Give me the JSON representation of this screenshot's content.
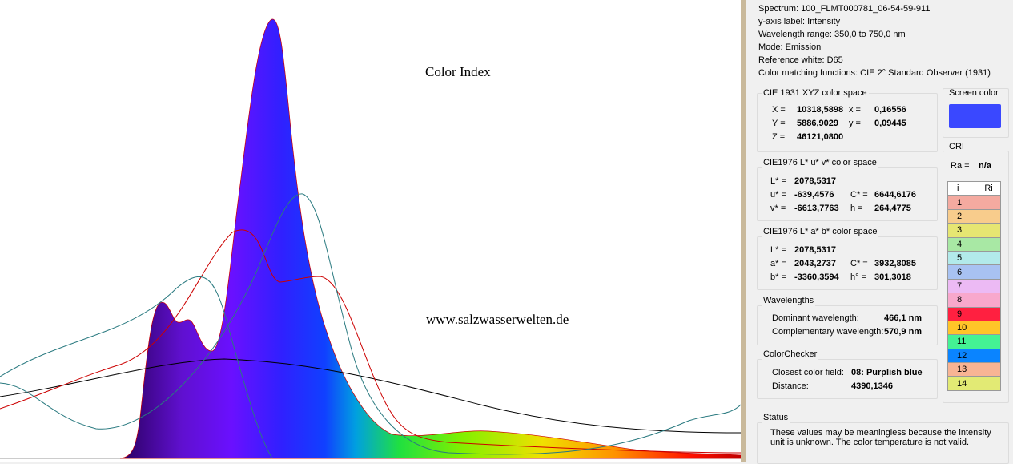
{
  "header": {
    "lines": [
      "Spectrum: 100_FLMT000781_06-54-59-911",
      "y-axis label: Intensity",
      "Wavelength range: 350,0 to 750,0 nm",
      "Mode: Emission",
      "Reference white: D65",
      "Color matching functions: CIE 2° Standard Observer (1931)"
    ]
  },
  "chart": {
    "title": "Color Index",
    "watermark": "www.salzwasserwelten.de"
  },
  "xyz": {
    "title": "CIE 1931 XYZ color space",
    "rows": [
      [
        "X =",
        "10318,5898",
        "x =",
        "0,16556"
      ],
      [
        "Y =",
        "5886,9029",
        "y =",
        "0,09445"
      ],
      [
        "Z =",
        "46121,0800"
      ]
    ]
  },
  "luv": {
    "title": "CIE1976 L* u* v* color space",
    "rows": [
      [
        "L* =",
        "2078,5317"
      ],
      [
        "u* =",
        "-639,4576",
        "C* =",
        "6644,6176"
      ],
      [
        "v* =",
        "-6613,7763",
        "h =",
        "264,4775"
      ]
    ]
  },
  "lab": {
    "title": "CIE1976 L* a* b* color space",
    "rows": [
      [
        "L* =",
        "2078,5317"
      ],
      [
        "a* =",
        "2043,2737",
        "C* =",
        "3932,8085"
      ],
      [
        "b* =",
        "-3360,3594",
        "h° =",
        "301,3018"
      ]
    ]
  },
  "wavelengths": {
    "title": "Wavelengths",
    "rows": [
      [
        "Dominant wavelength:",
        "466,1 nm"
      ],
      [
        "Complementary wavelength:",
        "570,9 nm"
      ]
    ]
  },
  "colorchecker": {
    "title": "ColorChecker",
    "rows": [
      [
        "Closest color field:",
        "08: Purplish blue"
      ],
      [
        "Distance:",
        "4390,1346"
      ]
    ]
  },
  "status": {
    "title": "Status",
    "text": "These values may be meaningless because the intensity unit is unknown. The color temperature is not valid."
  },
  "screen": {
    "title": "Screen color",
    "color": "#3a48ff"
  },
  "cri": {
    "title": "CRI",
    "ra_label": "Ra =",
    "ra": "n/a",
    "headers": [
      "i",
      "Ri"
    ],
    "rows": [
      {
        "i": "1",
        "color": "#f4aaa0"
      },
      {
        "i": "2",
        "color": "#f8cc8c"
      },
      {
        "i": "3",
        "color": "#e6e672"
      },
      {
        "i": "4",
        "color": "#a8e8a4"
      },
      {
        "i": "5",
        "color": "#b2eaea"
      },
      {
        "i": "6",
        "color": "#a8c2f2"
      },
      {
        "i": "7",
        "color": "#ecbaf4"
      },
      {
        "i": "8",
        "color": "#f8a8cc"
      },
      {
        "i": "9",
        "color": "#ff2040"
      },
      {
        "i": "10",
        "color": "#ffc428"
      },
      {
        "i": "11",
        "color": "#44f294"
      },
      {
        "i": "12",
        "color": "#0a84ff"
      },
      {
        "i": "13",
        "color": "#f8b494"
      },
      {
        "i": "14",
        "color": "#e2ea74"
      }
    ]
  }
}
